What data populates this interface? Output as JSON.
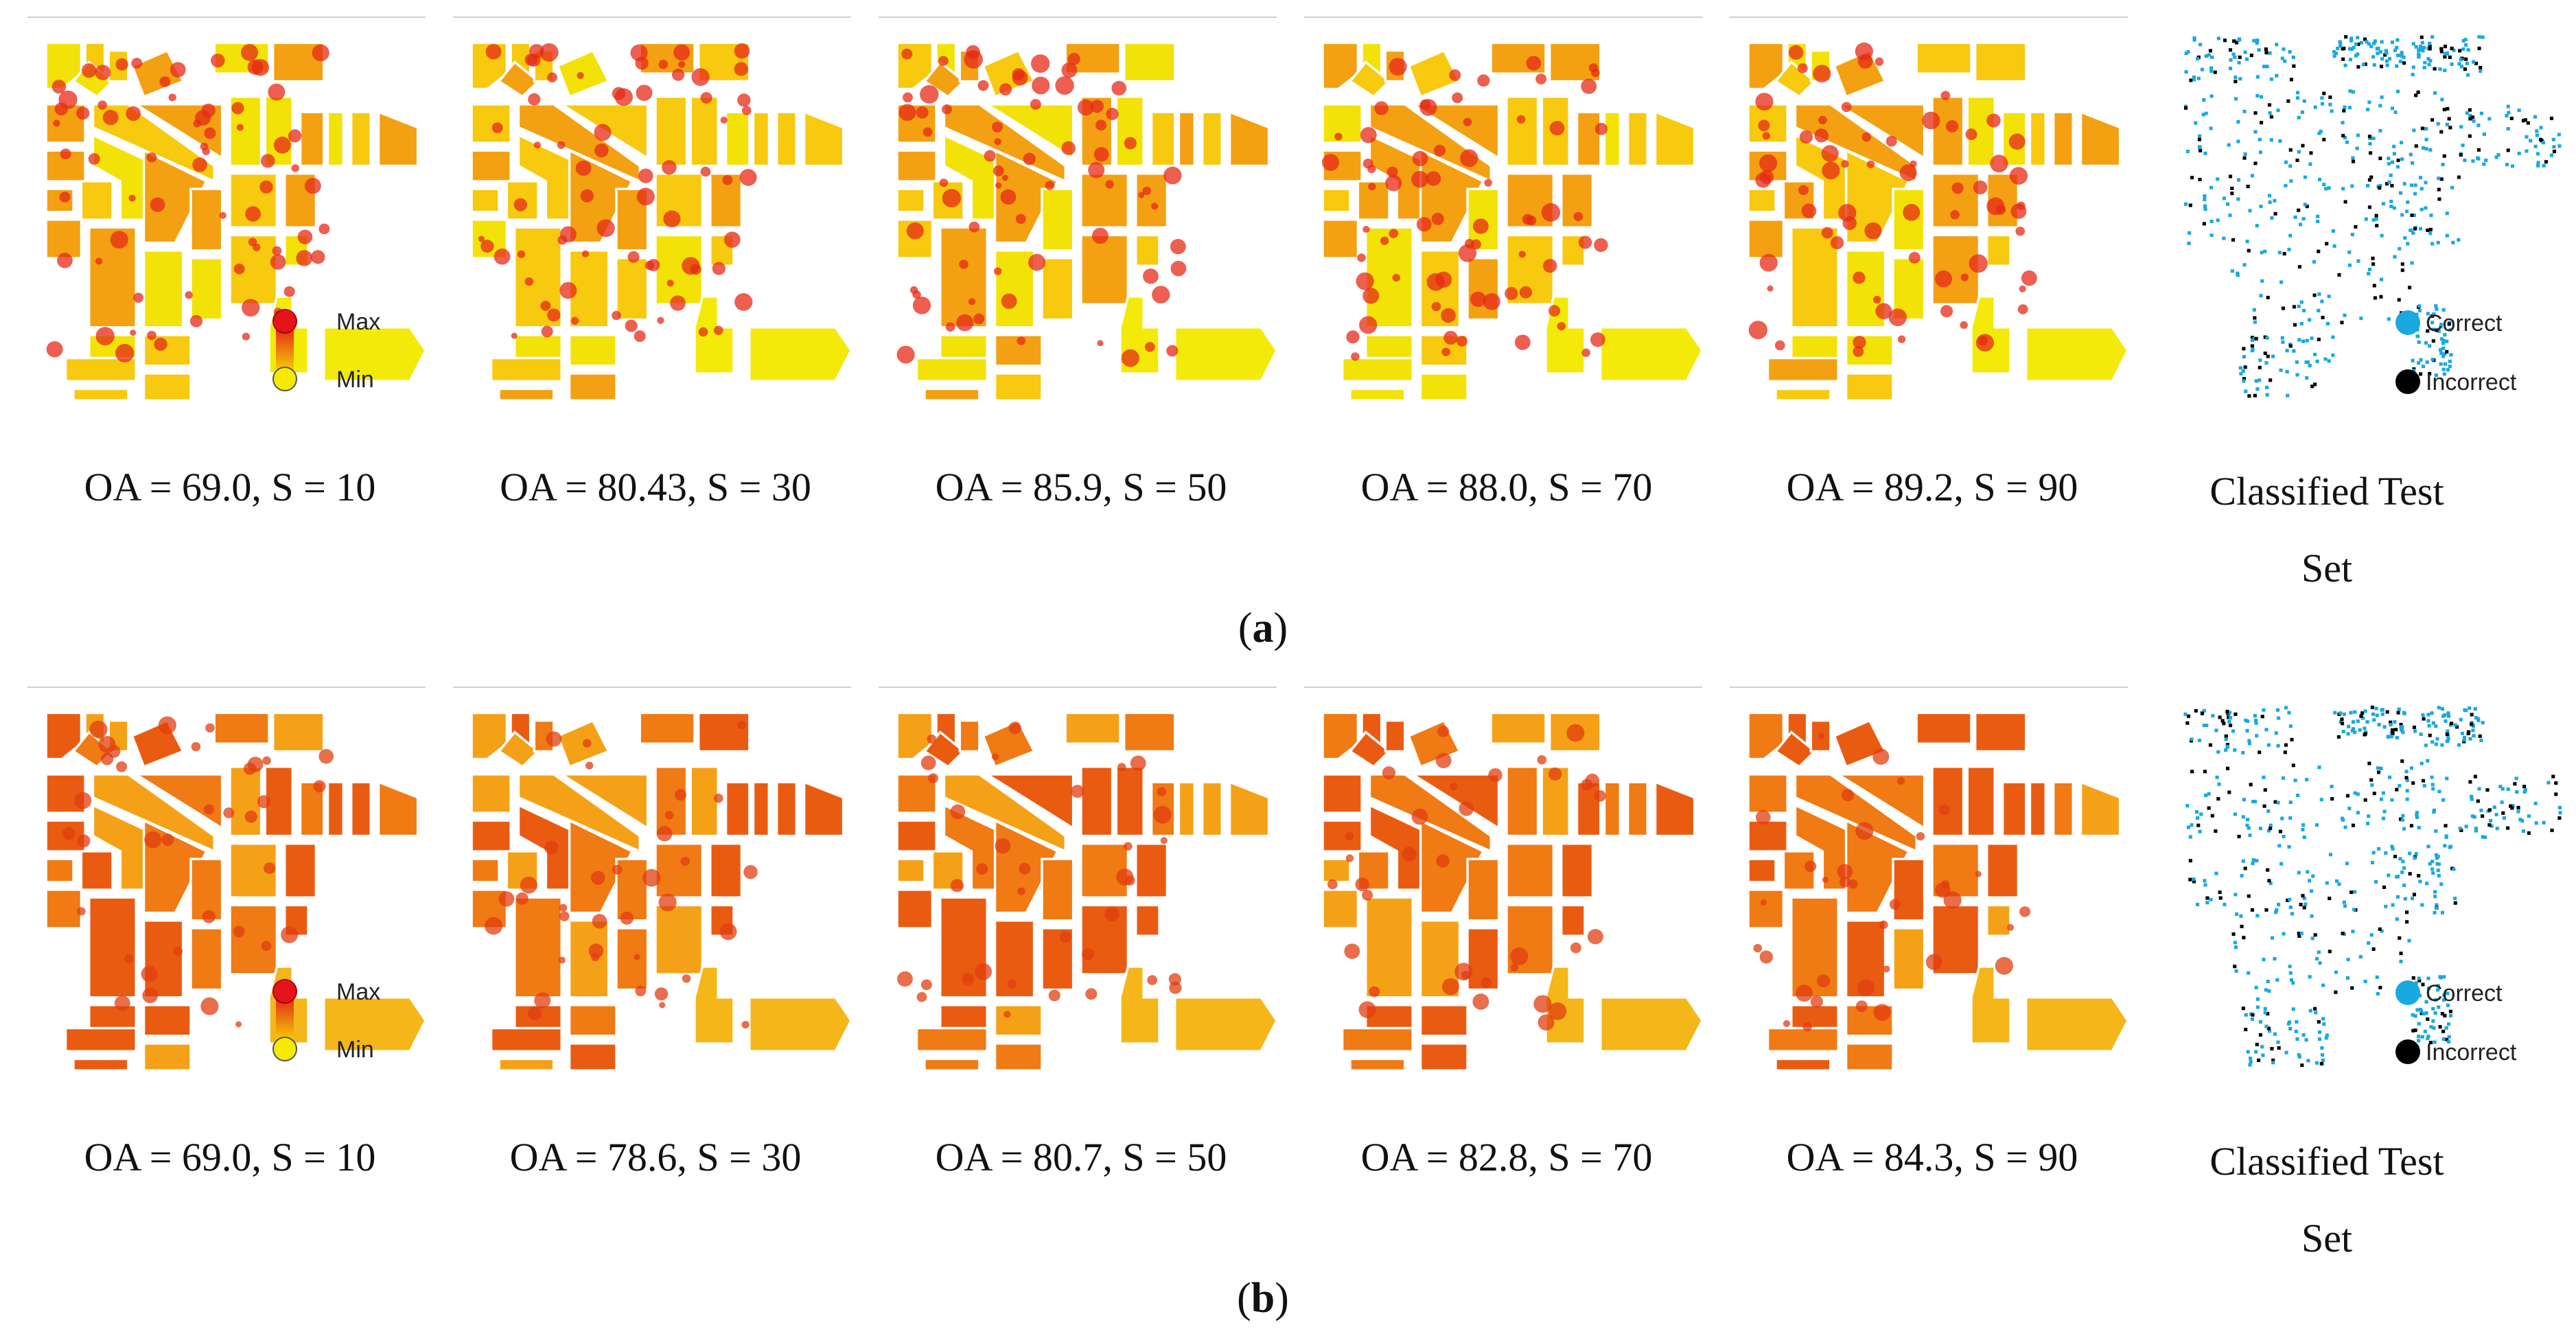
{
  "panels": [
    {
      "label": "a",
      "captions": [
        "OA = 69.0, S = 10",
        "OA = 80.43, S = 30",
        "OA = 85.9, S = 50",
        "OA = 88.0, S = 70",
        "OA = 89.2, S = 90"
      ],
      "class_caption_line1": "Classified Test",
      "class_caption_line2": "Set",
      "legend": {
        "max": "Max",
        "min": "Min"
      },
      "class_legend": {
        "correct": "Correct",
        "incorrect": "Incorrect"
      }
    },
    {
      "label": "b",
      "captions": [
        "OA = 69.0, S = 10",
        "OA = 78.6, S = 30",
        "OA = 80.7, S = 50",
        "OA = 82.8, S = 70",
        "OA = 84.3, S = 90"
      ],
      "class_caption_line1": "Classified Test",
      "class_caption_line2": "Set",
      "legend": {
        "max": "Max",
        "min": "Min"
      },
      "class_legend": {
        "correct": "Correct",
        "incorrect": "Incorrect"
      }
    }
  ],
  "colors": {
    "max": "#e3151b",
    "min": "#f5ea00",
    "correct": "#19a9df",
    "incorrect": "#000000"
  }
}
